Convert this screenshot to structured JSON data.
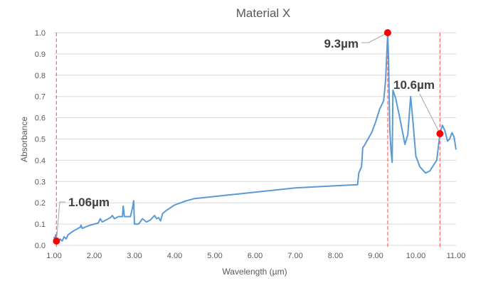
{
  "chart_data": {
    "type": "line",
    "title": "Material X",
    "xlabel": "Wavelength (µm)",
    "ylabel": "Absorbance",
    "xlim": [
      1,
      11
    ],
    "ylim": [
      0,
      1
    ],
    "grid": "horizontal",
    "x_ticks": [
      "1.00",
      "2.00",
      "3.00",
      "4.00",
      "5.00",
      "6.00",
      "7.00",
      "8.00",
      "9.00",
      "10.00",
      "11.00"
    ],
    "y_ticks": [
      "0.0",
      "0.1",
      "0.2",
      "0.3",
      "0.4",
      "0.5",
      "0.6",
      "0.7",
      "0.8",
      "0.9",
      "1.0"
    ],
    "line_color": "#5B9BD5",
    "marker_color": "#FF0000",
    "series": [
      {
        "x": [
          1.0,
          1.02,
          1.04,
          1.06,
          1.1,
          1.15,
          1.2,
          1.25,
          1.3,
          1.35,
          1.5,
          1.65,
          1.67,
          1.7,
          1.9,
          2.0,
          2.1,
          2.15,
          2.2,
          2.4,
          2.45,
          2.5,
          2.6,
          2.7,
          2.72,
          2.75,
          2.9,
          2.95,
          2.98,
          3.0,
          3.1,
          3.2,
          3.3,
          3.4,
          3.5,
          3.55,
          3.6,
          3.65,
          3.7,
          3.8,
          4.0,
          4.3,
          4.5,
          5.0,
          6.0,
          7.0,
          8.0,
          8.55,
          8.58,
          8.65,
          8.68,
          8.72,
          8.9,
          9.0,
          9.1,
          9.2,
          9.25,
          9.3,
          9.32,
          9.35,
          9.38,
          9.41,
          9.43,
          9.5,
          9.6,
          9.73,
          9.8,
          9.87,
          9.92,
          10.0,
          10.1,
          10.24,
          10.35,
          10.45,
          10.52,
          10.6,
          10.66,
          10.72,
          10.79,
          10.84,
          10.9,
          10.95,
          11.0
        ],
        "y": [
          0.04,
          0.02,
          0.05,
          0.02,
          0.01,
          0.03,
          0.02,
          0.04,
          0.03,
          0.05,
          0.07,
          0.085,
          0.095,
          0.08,
          0.095,
          0.1,
          0.105,
          0.125,
          0.11,
          0.13,
          0.14,
          0.125,
          0.135,
          0.135,
          0.185,
          0.135,
          0.135,
          0.175,
          0.21,
          0.1,
          0.1,
          0.125,
          0.11,
          0.12,
          0.14,
          0.125,
          0.13,
          0.115,
          0.15,
          0.165,
          0.19,
          0.21,
          0.22,
          0.23,
          0.25,
          0.27,
          0.28,
          0.285,
          0.34,
          0.37,
          0.46,
          0.47,
          0.53,
          0.58,
          0.64,
          0.68,
          0.78,
          1.0,
          0.88,
          0.55,
          0.45,
          0.39,
          0.73,
          0.69,
          0.6,
          0.475,
          0.52,
          0.7,
          0.6,
          0.42,
          0.37,
          0.34,
          0.35,
          0.38,
          0.4,
          0.525,
          0.565,
          0.54,
          0.49,
          0.5,
          0.53,
          0.51,
          0.45
        ]
      }
    ],
    "markers": [
      {
        "x": 1.06,
        "y": 0.02,
        "label": "1.06µm"
      },
      {
        "x": 9.3,
        "y": 1.0,
        "label": "9.3µm"
      },
      {
        "x": 10.6,
        "y": 0.525,
        "label": "10.6µm"
      }
    ]
  }
}
